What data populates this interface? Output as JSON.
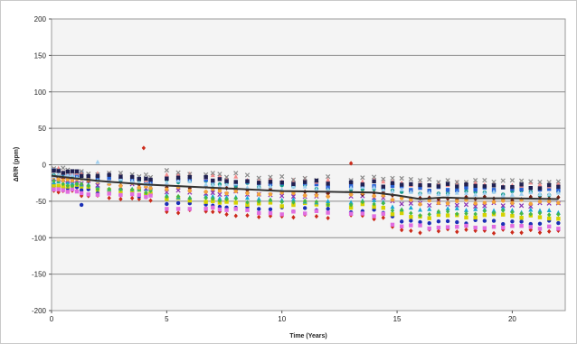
{
  "chart_data": {
    "type": "scatter",
    "title": "",
    "xlabel": "Time (Years)",
    "ylabel": "ΔR/R (ppm)",
    "xlim": [
      0,
      22.3
    ],
    "ylim": [
      -200,
      200
    ],
    "x_ticks": [
      0,
      5,
      10,
      15,
      20
    ],
    "y_ticks": [
      -200,
      -150,
      -100,
      -50,
      0,
      50,
      100,
      150,
      200
    ],
    "x_tick_labels": [
      "0",
      "5",
      "10",
      "15",
      "20"
    ],
    "y_tick_labels": [
      "-200",
      "-150",
      "-100",
      "-50",
      "0",
      "50",
      "100",
      "150",
      "200"
    ],
    "grid": "horizontal",
    "legend": "none",
    "measurement_times": [
      0.1,
      0.3,
      0.5,
      0.7,
      0.9,
      1.1,
      1.3,
      1.6,
      2.0,
      2.5,
      3.0,
      3.5,
      3.8,
      4.1,
      4.3,
      5.0,
      5.5,
      6.0,
      6.7,
      7.0,
      7.3,
      7.6,
      8.0,
      8.5,
      9.0,
      9.5,
      10.0,
      10.5,
      11.0,
      11.5,
      12.0,
      13.0,
      13.5,
      14.0,
      14.4,
      14.8,
      15.2,
      15.6,
      16.0,
      16.4,
      16.8,
      17.2,
      17.6,
      18.0,
      18.4,
      18.8,
      19.2,
      19.6,
      20.0,
      20.4,
      20.8,
      21.2,
      21.6,
      22.0
    ],
    "series_offsets_ppm": [
      -28,
      -20,
      -15,
      -10,
      -5,
      0,
      5,
      8,
      12,
      15,
      -24,
      -12,
      -3,
      4,
      10
    ],
    "series_colors": [
      "#cc2a1a",
      "#1a2fb5",
      "#d6d200",
      "#1aa7d4",
      "#8a2fb3",
      "#6e1f12",
      "#159a8c",
      "#2a62d6",
      "#f28c8c",
      "#8a8a8a",
      "#e06de0",
      "#46b846",
      "#f2a33a",
      "#a0d0f0",
      "#202050"
    ],
    "series_markers": [
      "diamond",
      "circle",
      "square",
      "triangle",
      "x",
      "diamond",
      "circle",
      "square",
      "triangle",
      "x",
      "square",
      "diamond",
      "circle",
      "triangle",
      "square"
    ],
    "mean_line": {
      "color": "#333333",
      "points": [
        [
          0,
          -15
        ],
        [
          2.0,
          -22
        ],
        [
          4.0,
          -27
        ],
        [
          6.0,
          -30
        ],
        [
          8.0,
          -33
        ],
        [
          10.0,
          -36
        ],
        [
          12.0,
          -37
        ],
        [
          14.0,
          -38
        ],
        [
          15.0,
          -42
        ],
        [
          16.0,
          -47
        ],
        [
          17.0,
          -45
        ],
        [
          18.0,
          -46
        ],
        [
          20.0,
          -46
        ],
        [
          22.0,
          -47
        ]
      ]
    }
  }
}
